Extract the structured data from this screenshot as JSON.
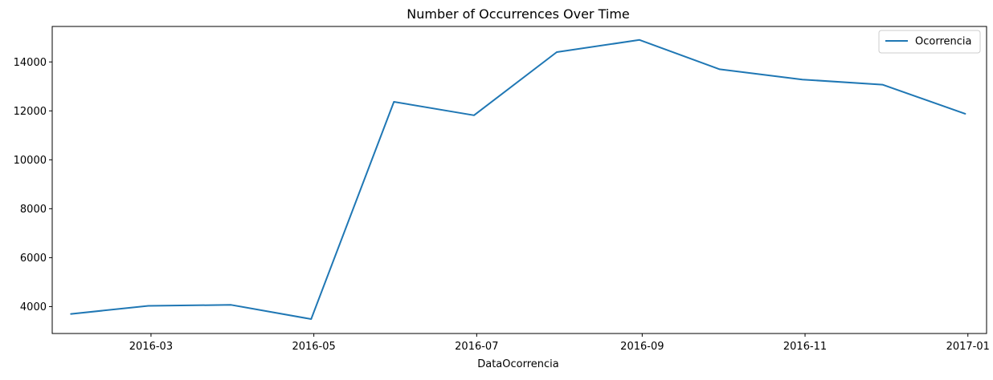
{
  "chart_data": {
    "type": "line",
    "title": "Number of Occurrences Over Time",
    "xlabel": "DataOcorrencia",
    "ylabel": "",
    "x_ticks": [
      "2016-03",
      "2016-05",
      "2016-07",
      "2016-09",
      "2016-11",
      "2017-01"
    ],
    "y_ticks": [
      "4000",
      "6000",
      "8000",
      "10000",
      "12000",
      "14000"
    ],
    "xlim": [
      "2016-01-24",
      "2017-01-08"
    ],
    "ylim": [
      2900,
      15450
    ],
    "grid": false,
    "legend_position": "top-right",
    "series": [
      {
        "name": "Ocorrencia",
        "color": "#1f77b4",
        "x": [
          "2016-01-31",
          "2016-02-29",
          "2016-03-31",
          "2016-04-30",
          "2016-05-31",
          "2016-06-30",
          "2016-07-31",
          "2016-08-31",
          "2016-09-30",
          "2016-10-31",
          "2016-11-30",
          "2016-12-31"
        ],
        "values": [
          3700,
          4030,
          4070,
          3490,
          12370,
          11820,
          14400,
          14900,
          13700,
          13280,
          13070,
          11880
        ]
      }
    ]
  }
}
